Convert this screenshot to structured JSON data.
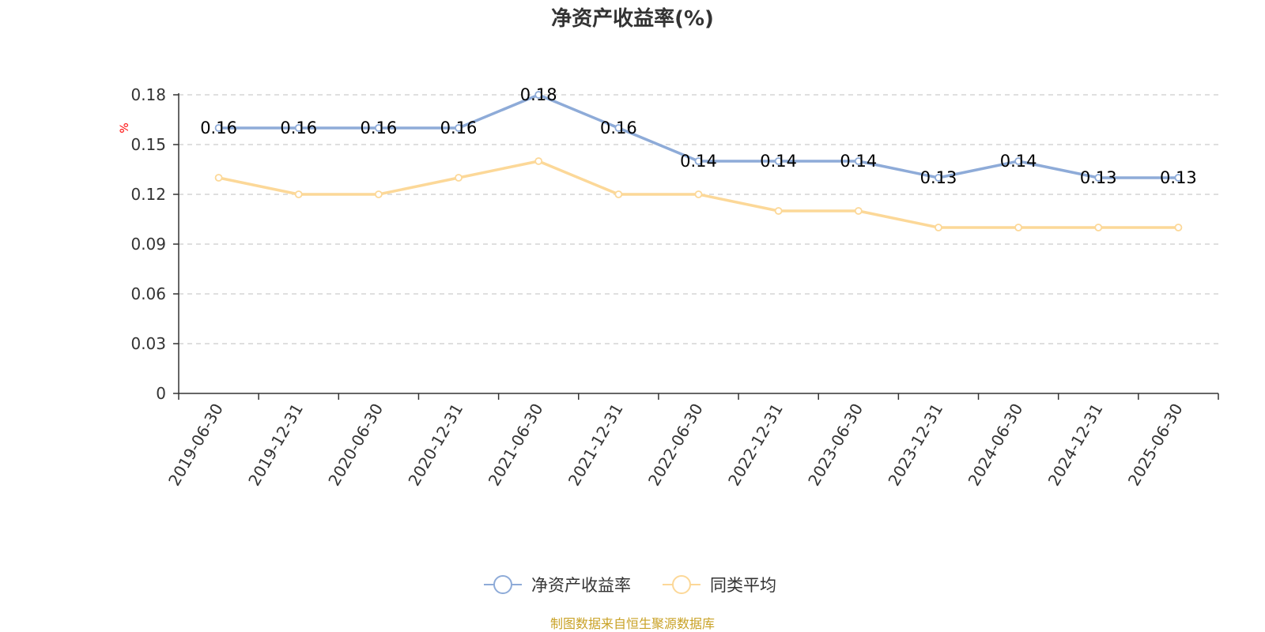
{
  "chart_data": {
    "type": "line",
    "title": "净资产收益率(%)",
    "ylabel": "%",
    "categories": [
      "2019-06-30",
      "2019-12-31",
      "2020-06-30",
      "2020-12-31",
      "2021-06-30",
      "2021-12-31",
      "2022-06-30",
      "2022-12-31",
      "2023-06-30",
      "2023-12-31",
      "2024-06-30",
      "2024-12-31",
      "2025-06-30"
    ],
    "y_ticks": [
      "0",
      "0.03",
      "0.06",
      "0.09",
      "0.12",
      "0.15",
      "0.18"
    ],
    "ylim": [
      0,
      0.18
    ],
    "grid": true,
    "legend_position": "bottom",
    "series": [
      {
        "name": "净资产收益率",
        "color": "#8eabd8",
        "values": [
          0.16,
          0.16,
          0.16,
          0.16,
          0.18,
          0.16,
          0.14,
          0.14,
          0.14,
          0.13,
          0.14,
          0.13,
          0.13
        ],
        "labels": [
          "0.16",
          "0.16",
          "0.16",
          "0.16",
          "0.18",
          "0.16",
          "0.14",
          "0.14",
          "0.14",
          "0.13",
          "0.14",
          "0.13",
          "0.13"
        ]
      },
      {
        "name": "同类平均",
        "color": "#fcd898",
        "values": [
          0.13,
          0.12,
          0.12,
          0.13,
          0.14,
          0.12,
          0.12,
          0.11,
          0.11,
          0.1,
          0.1,
          0.1,
          0.1
        ]
      }
    ]
  },
  "source": "制图数据来自恒生聚源数据库",
  "colors": {
    "unit_label": "#ff0000",
    "source_text": "#c9a227",
    "axis": "#333333",
    "grid": "#cccccc"
  }
}
